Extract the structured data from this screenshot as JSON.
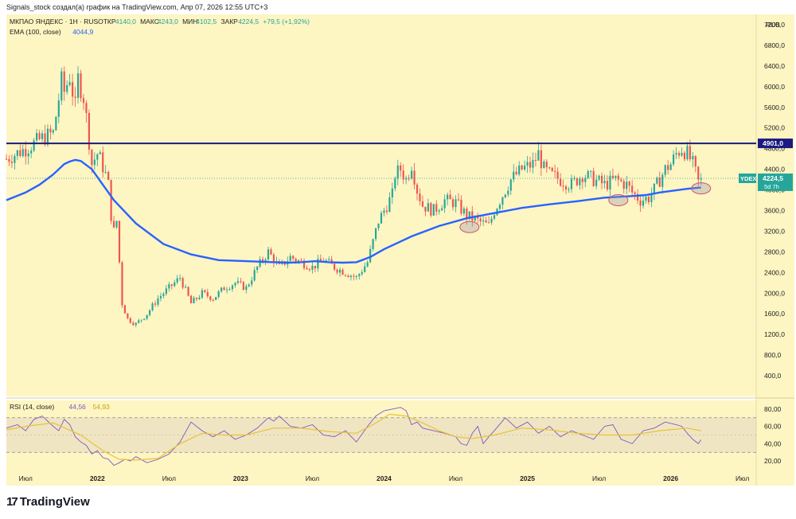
{
  "header": {
    "attribution": "Signals_stock создал(а) график на TradingView.com, Апр 07, 2026 12:55 UTC+3",
    "symbol_line": "МКПАО ЯНДЕКС · 1Н · RUS",
    "open_label": "ОТКР",
    "open_value": "4140,0",
    "high_label": "МАКС",
    "high_value": "4243,0",
    "low_label": "МИН",
    "low_value": "4102,5",
    "close_label": "ЗАКР",
    "close_value": "4224,5",
    "change_value": "+79,5 (+1,92%)",
    "ema_label": "EMA (100, close)",
    "ema_value": "4044,9",
    "currency": "RUB"
  },
  "colors": {
    "background": "#fdf5c2",
    "up": "#26a69a",
    "down": "#ef5350",
    "ema": "#2962ff",
    "rsi": "#7e57c2",
    "rsi_ma": "#e6c33a",
    "resistance": "#1a1a80",
    "price_tag": "#26a69a"
  },
  "chart_data": [
    {
      "type": "candlestick",
      "title": "МКПАО ЯНДЕКС · 1Н · RUS",
      "ylim": [
        0,
        7400
      ],
      "y_ticks": [
        400,
        800,
        1200,
        1600,
        2000,
        2400,
        2800,
        3200,
        3600,
        4000,
        4400,
        4800,
        5200,
        5600,
        6000,
        6400,
        6800,
        7200
      ],
      "y_tick_labels": [
        "400,0",
        "800,0",
        "1200,0",
        "1600,0",
        "2000,0",
        "2400,0",
        "2800,0",
        "3200,0",
        "3600,0",
        "4000,0",
        "4400,0",
        "4800,0",
        "5200,0",
        "5600,0",
        "6000,0",
        "6400,0",
        "6800,0",
        "7200,0"
      ],
      "x_tick_labels": [
        "Июл",
        "2022",
        "Июл",
        "2023",
        "Июл",
        "2024",
        "Июл",
        "2025",
        "Июл",
        "2026",
        "Июл"
      ],
      "x_tick_weeks": [
        0,
        26,
        52,
        78,
        104,
        130,
        156,
        182,
        208,
        234,
        260
      ],
      "price_path": {
        "weeks": [
          -7,
          0,
          6,
          10,
          13,
          14,
          16,
          18,
          19,
          21,
          22,
          24,
          26,
          27,
          29,
          30,
          31,
          32,
          33,
          35,
          37,
          40,
          44,
          48,
          52,
          56,
          60,
          64,
          68,
          72,
          76,
          80,
          84,
          88,
          92,
          96,
          100,
          104,
          108,
          112,
          116,
          120,
          124,
          128,
          130,
          133,
          134,
          136,
          138,
          140,
          142,
          144,
          148,
          152,
          156,
          160,
          164,
          166,
          168,
          170,
          172,
          176,
          180,
          184,
          186,
          188,
          190,
          194,
          198,
          202,
          206,
          210,
          214,
          218,
          220,
          223,
          226,
          228,
          230,
          232,
          234,
          236,
          238,
          240,
          242,
          244,
          245
        ],
        "close": [
          4600,
          4800,
          5000,
          5100,
          6100,
          5900,
          6200,
          5600,
          6150,
          5800,
          5400,
          4500,
          4700,
          4600,
          4300,
          4100,
          3500,
          3200,
          3400,
          1800,
          1500,
          1400,
          1600,
          1900,
          2100,
          2300,
          1800,
          2000,
          1900,
          2100,
          2200,
          2100,
          2500,
          2800,
          2500,
          2700,
          2600,
          2500,
          2650,
          2500,
          2400,
          2300,
          2600,
          3400,
          3600,
          3900,
          4300,
          4400,
          4200,
          4500,
          4000,
          3700,
          3600,
          3800,
          3750,
          3500,
          3400,
          3350,
          3300,
          3600,
          3800,
          4200,
          4400,
          4500,
          4700,
          4400,
          4300,
          4200,
          4100,
          4300,
          4200,
          4100,
          4200,
          4100,
          3950,
          3800,
          3850,
          4000,
          4200,
          4400,
          4500,
          4700,
          4800,
          4700,
          4500,
          4150,
          4224.5
        ]
      },
      "ema": {
        "name": "EMA (100, close)",
        "weeks": [
          -7,
          0,
          5,
          10,
          14,
          16,
          18,
          20,
          24,
          28,
          32,
          40,
          50,
          60,
          70,
          80,
          90,
          95,
          100,
          105,
          110,
          115,
          120,
          125,
          130,
          140,
          150,
          160,
          170,
          180,
          190,
          200,
          210,
          220,
          225,
          230,
          240,
          245
        ],
        "values": [
          3800,
          3950,
          4100,
          4300,
          4500,
          4550,
          4580,
          4560,
          4400,
          4100,
          3800,
          3350,
          2950,
          2750,
          2640,
          2620,
          2600,
          2590,
          2600,
          2620,
          2600,
          2590,
          2600,
          2700,
          2850,
          3100,
          3300,
          3450,
          3550,
          3650,
          3720,
          3780,
          3850,
          3880,
          3900,
          3950,
          4020,
          4044.9
        ]
      },
      "resistance": {
        "value": 4901.0,
        "label": "4901,0"
      },
      "last_price": {
        "value": 4224.5,
        "ticker": "YDEX",
        "price_label": "4224,5",
        "countdown": "5d 7h"
      },
      "highlights": [
        {
          "week": 161,
          "value": 3280
        },
        {
          "week": 215,
          "value": 3800
        },
        {
          "week": 245,
          "value": 4030
        }
      ]
    },
    {
      "type": "line",
      "title": "RSI (14, close)",
      "series_values": {
        "rsi": "44,56",
        "rsi_ma": "54,93"
      },
      "ylim": [
        10,
        90
      ],
      "y_ticks": [
        20,
        40,
        60,
        80
      ],
      "y_tick_labels": [
        "20,00",
        "40,00",
        "60,00",
        "80,00"
      ],
      "band": [
        30,
        70
      ],
      "midline": 50,
      "series": [
        {
          "name": "RSI",
          "weeks": [
            -7,
            -3,
            0,
            3,
            6,
            10,
            12,
            14,
            16,
            18,
            20,
            22,
            24,
            26,
            28,
            30,
            32,
            34,
            36,
            38,
            40,
            44,
            48,
            52,
            56,
            60,
            64,
            68,
            72,
            76,
            80,
            84,
            88,
            90,
            92,
            96,
            100,
            104,
            108,
            112,
            116,
            120,
            124,
            127,
            130,
            133,
            136,
            138,
            140,
            142,
            144,
            148,
            152,
            156,
            158,
            160,
            162,
            164,
            166,
            168,
            170,
            174,
            178,
            182,
            186,
            190,
            194,
            198,
            202,
            206,
            210,
            213,
            216,
            220,
            224,
            228,
            232,
            236,
            238,
            240,
            242,
            244,
            245
          ],
          "values": [
            58,
            62,
            55,
            68,
            72,
            60,
            55,
            68,
            62,
            48,
            42,
            38,
            28,
            32,
            24,
            22,
            15,
            18,
            22,
            20,
            25,
            18,
            22,
            28,
            42,
            65,
            55,
            48,
            55,
            45,
            50,
            58,
            70,
            66,
            72,
            60,
            58,
            62,
            50,
            48,
            55,
            42,
            60,
            72,
            78,
            80,
            82,
            78,
            62,
            65,
            58,
            55,
            52,
            48,
            40,
            38,
            52,
            60,
            40,
            48,
            55,
            70,
            58,
            65,
            52,
            60,
            48,
            55,
            50,
            45,
            60,
            62,
            45,
            40,
            55,
            58,
            65,
            62,
            60,
            52,
            45,
            40,
            44.56
          ]
        },
        {
          "name": "RSI-based MA",
          "weeks": [
            -7,
            0,
            10,
            20,
            28,
            34,
            40,
            48,
            56,
            64,
            72,
            80,
            90,
            100,
            110,
            120,
            126,
            132,
            138,
            144,
            150,
            156,
            162,
            170,
            180,
            190,
            200,
            210,
            220,
            230,
            240,
            245
          ],
          "values": [
            56,
            60,
            64,
            50,
            32,
            22,
            21,
            23,
            40,
            52,
            50,
            50,
            58,
            58,
            54,
            52,
            62,
            74,
            72,
            64,
            55,
            48,
            46,
            50,
            58,
            56,
            52,
            50,
            50,
            55,
            58,
            54.93
          ]
        }
      ]
    }
  ],
  "branding": {
    "logo_mark": "17",
    "logo_text": "TradingView"
  }
}
